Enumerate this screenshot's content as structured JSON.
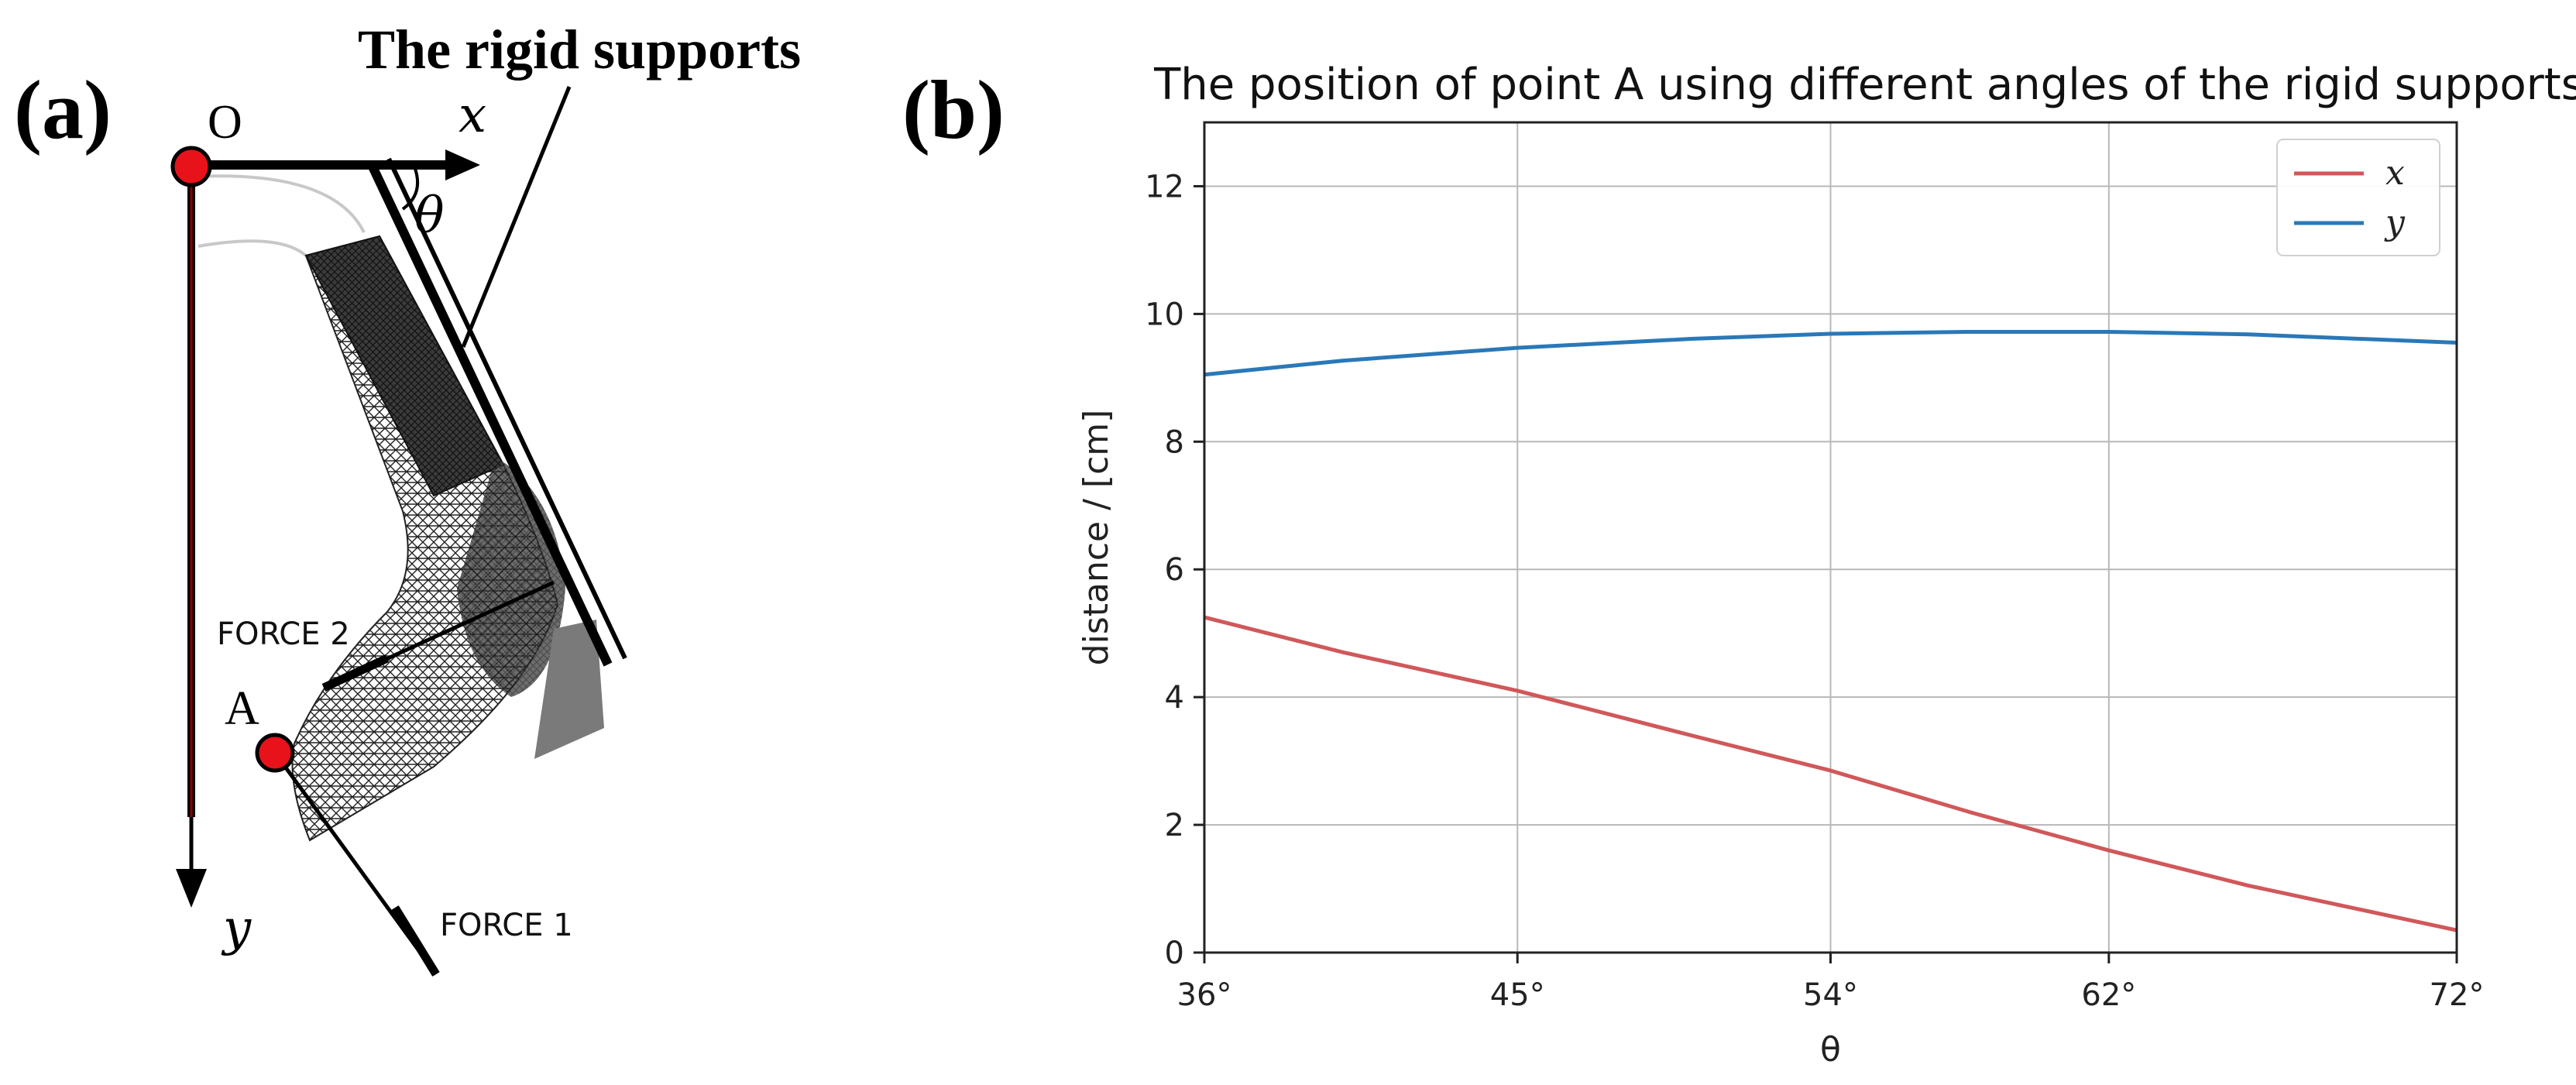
{
  "panel_a": {
    "label": "(a)",
    "title": "The rigid supports",
    "origin_label": "O",
    "x_axis_label": "x",
    "y_axis_label": "y",
    "angle_label": "θ",
    "point_label": "A",
    "force1_label": "FORCE 1",
    "force2_label": "FORCE 2",
    "colors": {
      "marker": "#e8121b",
      "mesh": "#1a1a1a",
      "support_block": "#7a7a7a"
    }
  },
  "panel_b": {
    "label": "(b)"
  },
  "chart_data": {
    "type": "line",
    "title": "The position of point A using different angles of the rigid supports",
    "xlabel": "θ",
    "ylabel": "distance / [cm]",
    "x_ticks": [
      36,
      45,
      54,
      62,
      72
    ],
    "x_tick_labels": [
      "36°",
      "45°",
      "54°",
      "62°",
      "72°"
    ],
    "y_ticks": [
      0,
      2,
      4,
      6,
      8,
      10,
      12
    ],
    "y_tick_labels": [
      "0",
      "2",
      "4",
      "6",
      "8",
      "10",
      "12"
    ],
    "xlim": [
      36,
      72
    ],
    "ylim": [
      0,
      13
    ],
    "grid": true,
    "legend_position": "top-right",
    "x": [
      36,
      40,
      45,
      50,
      54,
      58,
      62,
      66,
      72
    ],
    "series": [
      {
        "name": "x",
        "color": "#d0585a",
        "values": [
          5.25,
          4.7,
          4.1,
          3.4,
          2.85,
          2.2,
          1.6,
          1.05,
          0.35
        ]
      },
      {
        "name": "y",
        "color": "#2a78b8",
        "values": [
          9.05,
          9.27,
          9.47,
          9.61,
          9.69,
          9.72,
          9.72,
          9.68,
          9.55
        ]
      }
    ]
  }
}
